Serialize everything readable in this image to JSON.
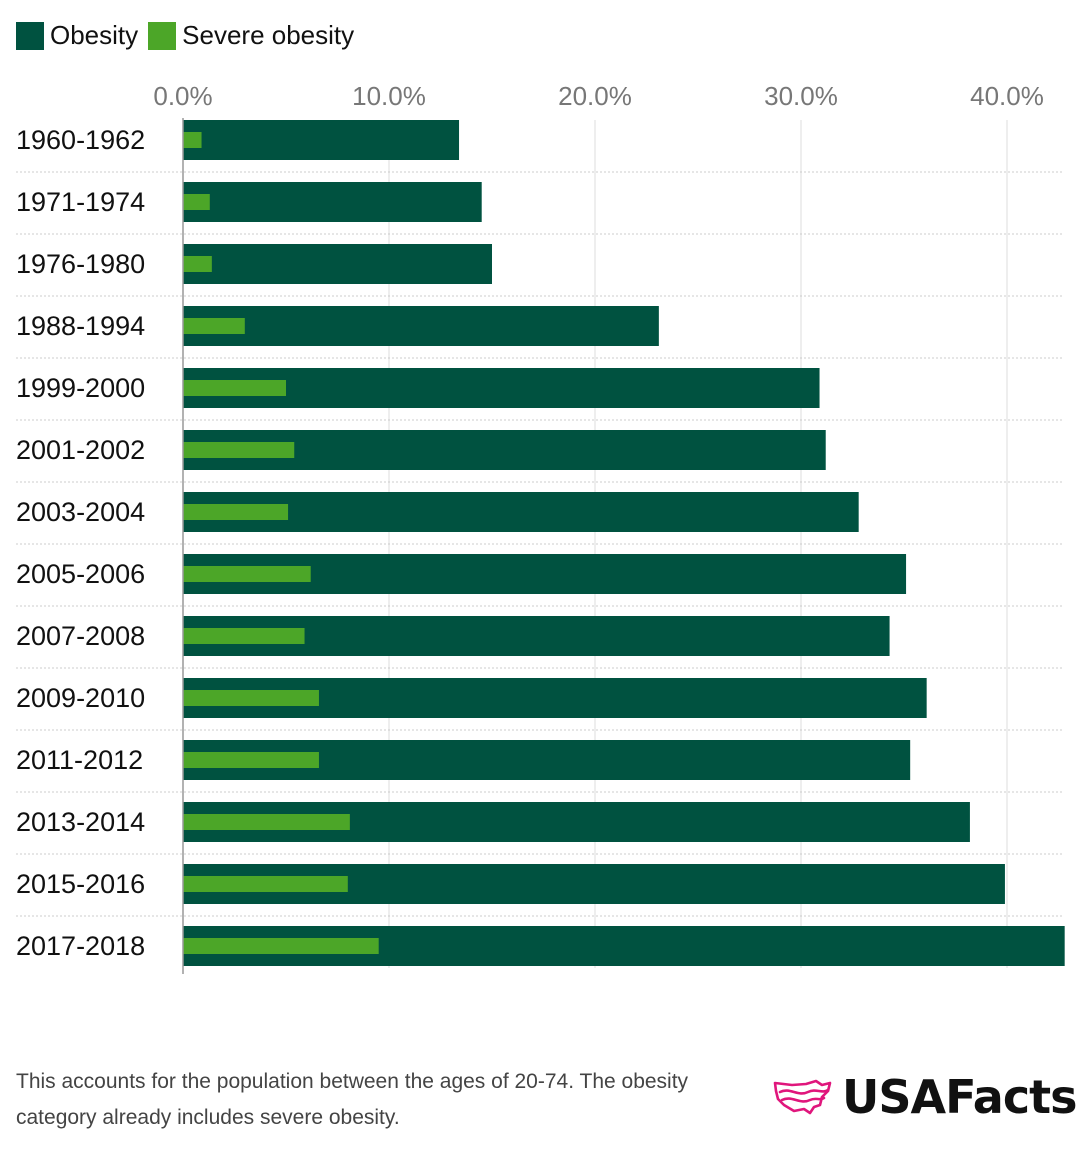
{
  "legend": {
    "items": [
      {
        "label": "Obesity",
        "color": "#005240"
      },
      {
        "label": "Severe obesity",
        "color": "#4ca628"
      }
    ]
  },
  "chart_data": {
    "type": "bar",
    "orientation": "horizontal",
    "categories": [
      "1960-1962",
      "1971-1974",
      "1976-1980",
      "1988-1994",
      "1999-2000",
      "2001-2002",
      "2003-2004",
      "2005-2006",
      "2007-2008",
      "2009-2010",
      "2011-2012",
      "2013-2014",
      "2015-2016",
      "2017-2018"
    ],
    "series": [
      {
        "name": "Obesity",
        "color": "#005240",
        "values": [
          13.4,
          14.5,
          15.0,
          23.1,
          30.9,
          31.2,
          32.8,
          35.1,
          34.3,
          36.1,
          35.3,
          38.2,
          39.9,
          42.8
        ]
      },
      {
        "name": "Severe obesity",
        "color": "#4ca628",
        "values": [
          0.9,
          1.3,
          1.4,
          3.0,
          5.0,
          5.4,
          5.1,
          6.2,
          5.9,
          6.6,
          6.6,
          8.1,
          8.0,
          9.5
        ]
      }
    ],
    "xlim": [
      0,
      43
    ],
    "ticks": [
      0,
      10,
      20,
      30,
      40
    ],
    "tick_labels": [
      "0.0%",
      "10.0%",
      "20.0%",
      "30.0%",
      "40.0%"
    ],
    "legend_position": "top-left",
    "grid": true
  },
  "footnote": "This accounts for the population between the ages of 20-74. The obesity category already includes severe obesity.",
  "brand": {
    "name": "USAFacts",
    "icon": "usa-map-logo-icon",
    "color": "#e0167c"
  }
}
